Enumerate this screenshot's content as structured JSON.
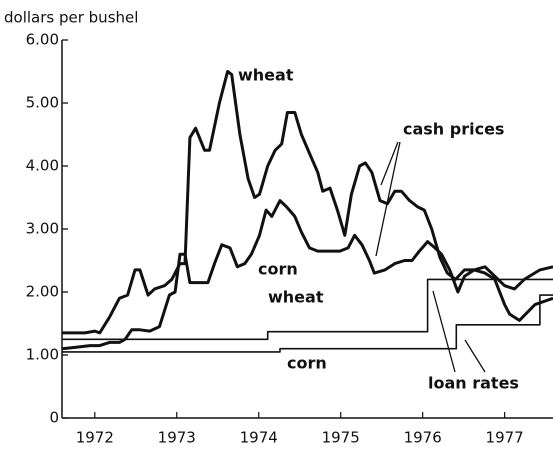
{
  "chart_data": {
    "type": "line",
    "title": "dollars per bushel",
    "xlim": [
      1972.1,
      1978.09
    ],
    "xticks": [
      {
        "value": 1972.5,
        "label": "1972"
      },
      {
        "value": 1973.5,
        "label": "1973"
      },
      {
        "value": 1974.5,
        "label": "1974"
      },
      {
        "value": 1975.5,
        "label": "1975"
      },
      {
        "value": 1976.5,
        "label": "1976"
      },
      {
        "value": 1977.5,
        "label": "1977"
      }
    ],
    "ylim": [
      0,
      6
    ],
    "yticks": [
      0,
      {
        "value": 1,
        "label": "1.00"
      },
      {
        "value": 2,
        "label": "2.00"
      },
      {
        "value": 3,
        "label": "3.00"
      },
      {
        "value": 4,
        "label": "4.00"
      },
      {
        "value": 5,
        "label": "5.00"
      },
      {
        "value": 6,
        "label": "6.00"
      }
    ],
    "annotations": [
      "wheat",
      "corn",
      "cash prices",
      "wheat",
      "corn",
      "loan rates"
    ],
    "series": [
      {
        "color": "#111111",
        "width": 3,
        "x": [
          1972.1,
          1972.38,
          1972.5,
          1972.56,
          1972.68,
          1972.8,
          1972.9,
          1972.99,
          1973.05,
          1973.15,
          1973.23,
          1973.35,
          1973.44,
          1973.54,
          1973.6,
          1973.66,
          1973.73,
          1973.84,
          1973.9,
          1974.02,
          1974.12,
          1974.17,
          1974.27,
          1974.37,
          1974.45,
          1974.51,
          1974.61,
          1974.7,
          1974.78,
          1974.85,
          1974.94,
          1975.02,
          1975.12,
          1975.22,
          1975.28,
          1975.37,
          1975.46,
          1975.55,
          1975.63,
          1975.73,
          1975.8,
          1975.88,
          1975.98,
          1976.07,
          1976.16,
          1976.24,
          1976.34,
          1976.44,
          1976.52,
          1976.61,
          1976.71,
          1976.8,
          1976.9,
          1977.01,
          1977.13,
          1977.26,
          1977.38,
          1977.5,
          1977.56,
          1977.68,
          1977.87,
          1978.09
        ],
        "values": [
          1.35,
          1.35,
          1.38,
          1.35,
          1.6,
          1.9,
          1.95,
          2.35,
          2.35,
          1.95,
          2.05,
          2.1,
          2.2,
          2.45,
          2.45,
          4.45,
          4.6,
          4.25,
          4.25,
          5.0,
          5.5,
          5.45,
          4.5,
          3.8,
          3.5,
          3.55,
          4.0,
          4.25,
          4.35,
          4.85,
          4.85,
          4.5,
          4.2,
          3.9,
          3.6,
          3.65,
          3.3,
          2.9,
          3.55,
          4.0,
          4.05,
          3.9,
          3.45,
          3.4,
          3.6,
          3.6,
          3.45,
          3.35,
          3.3,
          3.0,
          2.55,
          2.3,
          2.2,
          2.35,
          2.35,
          2.3,
          2.2,
          1.8,
          1.65,
          1.55,
          1.8,
          1.9
        ]
      },
      {
        "color": "#111111",
        "width": 3,
        "x": [
          1972.1,
          1972.26,
          1972.44,
          1972.56,
          1972.68,
          1972.8,
          1972.87,
          1972.95,
          1973.05,
          1973.17,
          1973.29,
          1973.41,
          1973.48,
          1973.54,
          1973.6,
          1973.66,
          1973.78,
          1973.88,
          1973.96,
          1974.05,
          1974.15,
          1974.24,
          1974.33,
          1974.41,
          1974.51,
          1974.59,
          1974.66,
          1974.76,
          1974.84,
          1974.94,
          1975.02,
          1975.12,
          1975.22,
          1975.37,
          1975.49,
          1975.59,
          1975.67,
          1975.76,
          1975.85,
          1975.91,
          1976.04,
          1976.16,
          1976.28,
          1976.37,
          1976.46,
          1976.56,
          1976.65,
          1976.73,
          1976.83,
          1976.93,
          1977.01,
          1977.13,
          1977.26,
          1977.34,
          1977.5,
          1977.62,
          1977.74,
          1977.93,
          1978.09
        ],
        "values": [
          1.1,
          1.12,
          1.15,
          1.15,
          1.2,
          1.2,
          1.25,
          1.4,
          1.4,
          1.38,
          1.45,
          1.95,
          2.0,
          2.6,
          2.6,
          2.15,
          2.15,
          2.15,
          2.45,
          2.75,
          2.7,
          2.4,
          2.45,
          2.6,
          2.9,
          3.3,
          3.2,
          3.45,
          3.35,
          3.2,
          2.95,
          2.7,
          2.65,
          2.65,
          2.65,
          2.7,
          2.9,
          2.75,
          2.5,
          2.3,
          2.35,
          2.45,
          2.5,
          2.5,
          2.65,
          2.8,
          2.7,
          2.6,
          2.35,
          2.0,
          2.25,
          2.35,
          2.4,
          2.3,
          2.1,
          2.05,
          2.2,
          2.35,
          2.4
        ]
      },
      {
        "color": "#111111",
        "width": 1.6,
        "x": [
          1972.1,
          1974.61,
          1974.61,
          1976.56,
          1976.56,
          1978.09
        ],
        "values": [
          1.25,
          1.25,
          1.37,
          1.37,
          2.2,
          2.2
        ]
      },
      {
        "color": "#111111",
        "width": 1.6,
        "x": [
          1972.1,
          1974.76,
          1974.76,
          1976.91,
          1976.91,
          1977.93,
          1977.93,
          1978.09
        ],
        "values": [
          1.05,
          1.05,
          1.1,
          1.1,
          1.48,
          1.48,
          1.95,
          1.95
        ]
      }
    ]
  }
}
